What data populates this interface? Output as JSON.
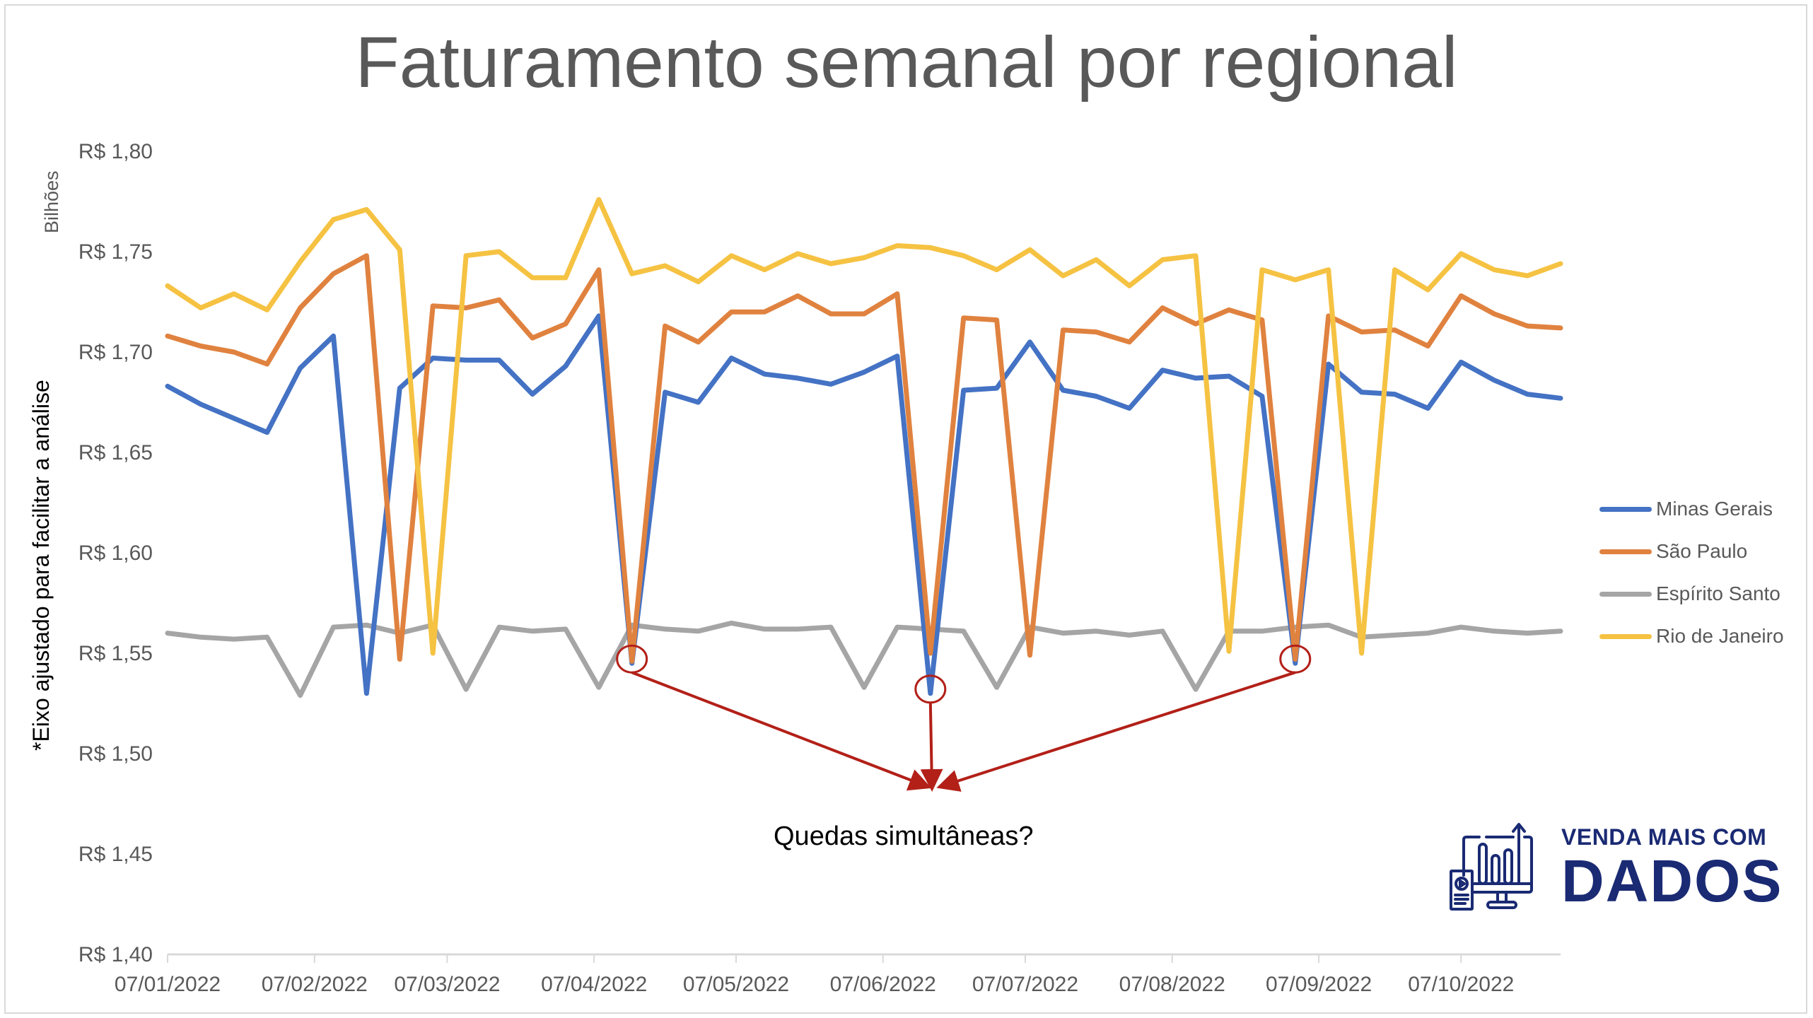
{
  "title": "Faturamento semanal por regional",
  "y_axis_units": "Bilhões",
  "y_axis_note": "*Eixo ajustado para facilitar a análise",
  "annotation_text": "Quedas simultâneas?",
  "logo": {
    "line1": "VENDA MAIS COM",
    "line2": "DADOS",
    "color": "#1a2a73"
  },
  "colors": {
    "minas_gerais": "#4472c4",
    "sao_paulo": "#ed7d31",
    "espirito_santo": "#a5a5a5",
    "rio_de_janeiro": "#ffc000",
    "annotation": "#b22018",
    "axis": "#d9d9d9"
  },
  "legend": [
    {
      "label": "Minas Gerais",
      "color": "#4472c4"
    },
    {
      "label": "São Paulo",
      "color": "#e0823f"
    },
    {
      "label": "Espírito Santo",
      "color": "#a5a5a5"
    },
    {
      "label": "Rio de Janeiro",
      "color": "#f5c242"
    }
  ],
  "chart_data": {
    "type": "line",
    "title": "Faturamento semanal por regional",
    "xlabel": "",
    "ylabel": "Bilhões",
    "y_note": "*Eixo ajustado para facilitar a análise",
    "ylim": [
      1.4,
      1.8
    ],
    "y_ticks": [
      "R$ 1,80",
      "R$ 1,75",
      "R$ 1,70",
      "R$ 1,65",
      "R$ 1,60",
      "R$ 1,55",
      "R$ 1,50",
      "R$ 1,45",
      "R$ 1,40"
    ],
    "y_tick_values": [
      1.8,
      1.75,
      1.7,
      1.65,
      1.6,
      1.55,
      1.5,
      1.45,
      1.4
    ],
    "x_tick_labels": [
      "07/01/2022",
      "07/02/2022",
      "07/03/2022",
      "07/04/2022",
      "07/05/2022",
      "07/06/2022",
      "07/07/2022",
      "07/08/2022",
      "07/09/2022",
      "07/10/2022"
    ],
    "x_tick_positions_weeks": [
      0,
      4.43,
      8.43,
      12.86,
      17.14,
      21.57,
      25.86,
      30.29,
      34.71,
      39.0
    ],
    "x_start": "07/01/2022",
    "x_interval": "weekly",
    "n_points": 43,
    "grid": false,
    "legend_position": "right",
    "series": [
      {
        "name": "Minas Gerais",
        "color": "#4472c4",
        "values": [
          1.683,
          1.674,
          1.667,
          1.66,
          1.692,
          1.708,
          1.53,
          1.682,
          1.697,
          1.696,
          1.696,
          1.679,
          1.693,
          1.718,
          1.545,
          1.68,
          1.675,
          1.697,
          1.689,
          1.687,
          1.684,
          1.69,
          1.698,
          1.53,
          1.681,
          1.682,
          1.705,
          1.681,
          1.678,
          1.672,
          1.691,
          1.687,
          1.688,
          1.678,
          1.545,
          1.694,
          1.68,
          1.679,
          1.672,
          1.695,
          1.686,
          1.679,
          1.677
        ]
      },
      {
        "name": "São Paulo",
        "color": "#e0823f",
        "values": [
          1.708,
          1.703,
          1.7,
          1.694,
          1.722,
          1.739,
          1.748,
          1.547,
          1.723,
          1.722,
          1.726,
          1.707,
          1.714,
          1.741,
          1.546,
          1.713,
          1.705,
          1.72,
          1.72,
          1.728,
          1.719,
          1.719,
          1.729,
          1.55,
          1.717,
          1.716,
          1.549,
          1.711,
          1.71,
          1.705,
          1.722,
          1.714,
          1.721,
          1.716,
          1.547,
          1.718,
          1.71,
          1.711,
          1.703,
          1.728,
          1.719,
          1.713,
          1.712
        ]
      },
      {
        "name": "Espírito Santo",
        "color": "#a5a5a5",
        "values": [
          1.56,
          1.558,
          1.557,
          1.558,
          1.529,
          1.563,
          1.564,
          1.56,
          1.564,
          1.532,
          1.563,
          1.561,
          1.562,
          1.533,
          1.564,
          1.562,
          1.561,
          1.565,
          1.562,
          1.562,
          1.563,
          1.533,
          1.563,
          1.562,
          1.561,
          1.533,
          1.563,
          1.56,
          1.561,
          1.559,
          1.561,
          1.532,
          1.561,
          1.561,
          1.563,
          1.564,
          1.558,
          1.559,
          1.56,
          1.563,
          1.561,
          1.56,
          1.561
        ]
      },
      {
        "name": "Rio de Janeiro",
        "color": "#f5c242",
        "values": [
          1.733,
          1.722,
          1.729,
          1.721,
          1.745,
          1.766,
          1.771,
          1.751,
          1.55,
          1.748,
          1.75,
          1.737,
          1.737,
          1.776,
          1.739,
          1.743,
          1.735,
          1.748,
          1.741,
          1.749,
          1.744,
          1.747,
          1.753,
          1.752,
          1.748,
          1.741,
          1.751,
          1.738,
          1.746,
          1.733,
          1.746,
          1.748,
          1.551,
          1.741,
          1.736,
          1.741,
          1.55,
          1.741,
          1.731,
          1.749,
          1.741,
          1.738,
          1.744
        ]
      }
    ],
    "annotations": [
      {
        "type": "circle",
        "point_index": 14,
        "series": "Minas Gerais"
      },
      {
        "type": "circle",
        "point_index": 23,
        "series": "Minas Gerais"
      },
      {
        "type": "circle",
        "point_index": 34,
        "series": "Minas Gerais"
      },
      {
        "type": "arrows",
        "target_label": "Quedas simultâneas?"
      }
    ]
  }
}
